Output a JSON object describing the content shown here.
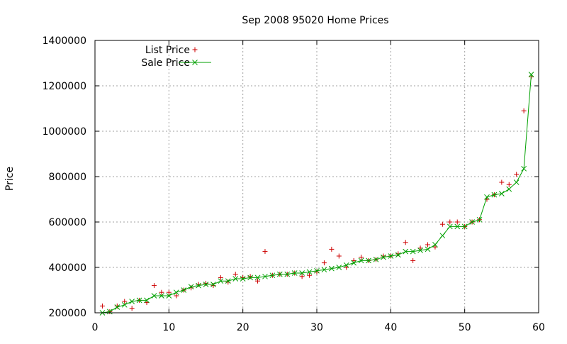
{
  "colors": {
    "list_price": "#cc0000",
    "sale_price": "#00a000",
    "grid": "#a0a0a0",
    "axis": "#000000"
  },
  "chart_data": {
    "type": "scatter",
    "title": "Sep 2008 95020 Home Prices",
    "xlabel": "",
    "ylabel": "Price",
    "xlim": [
      0,
      60
    ],
    "ylim": [
      200000,
      1400000
    ],
    "x_ticks": [
      0,
      10,
      20,
      30,
      40,
      50,
      60
    ],
    "y_ticks": [
      200000,
      400000,
      600000,
      800000,
      1000000,
      1200000,
      1400000
    ],
    "grid": true,
    "legend_position": "top-left",
    "x": [
      1,
      2,
      3,
      4,
      5,
      6,
      7,
      8,
      9,
      10,
      11,
      12,
      13,
      14,
      15,
      16,
      17,
      18,
      19,
      20,
      21,
      22,
      23,
      24,
      25,
      26,
      27,
      28,
      29,
      30,
      31,
      32,
      33,
      34,
      35,
      36,
      37,
      38,
      39,
      40,
      41,
      42,
      43,
      44,
      45,
      46,
      47,
      48,
      49,
      50,
      51,
      52,
      53,
      54,
      55,
      56,
      57,
      58,
      59
    ],
    "series": [
      {
        "name": "List Price",
        "marker": "plus",
        "line": false,
        "values": [
          230000,
          205000,
          230000,
          250000,
          220000,
          255000,
          245000,
          320000,
          290000,
          290000,
          275000,
          300000,
          310000,
          325000,
          330000,
          320000,
          355000,
          335000,
          370000,
          355000,
          360000,
          340000,
          470000,
          365000,
          370000,
          370000,
          375000,
          360000,
          365000,
          380000,
          420000,
          480000,
          450000,
          400000,
          430000,
          445000,
          430000,
          435000,
          450000,
          450000,
          460000,
          510000,
          430000,
          485000,
          500000,
          490000,
          590000,
          600000,
          600000,
          580000,
          600000,
          610000,
          700000,
          720000,
          775000,
          765000,
          810000,
          1090000,
          1240000
        ]
      },
      {
        "name": "Sale Price",
        "marker": "x",
        "line": true,
        "values": [
          200000,
          205000,
          225000,
          235000,
          250000,
          255000,
          255000,
          275000,
          275000,
          275000,
          290000,
          300000,
          315000,
          320000,
          325000,
          325000,
          340000,
          340000,
          350000,
          350000,
          355000,
          355000,
          360000,
          365000,
          370000,
          370000,
          375000,
          375000,
          380000,
          385000,
          390000,
          395000,
          400000,
          410000,
          420000,
          430000,
          430000,
          435000,
          445000,
          450000,
          455000,
          470000,
          470000,
          475000,
          480000,
          500000,
          540000,
          580000,
          580000,
          580000,
          600000,
          610000,
          710000,
          720000,
          725000,
          745000,
          775000,
          835000,
          1250000
        ]
      }
    ]
  }
}
